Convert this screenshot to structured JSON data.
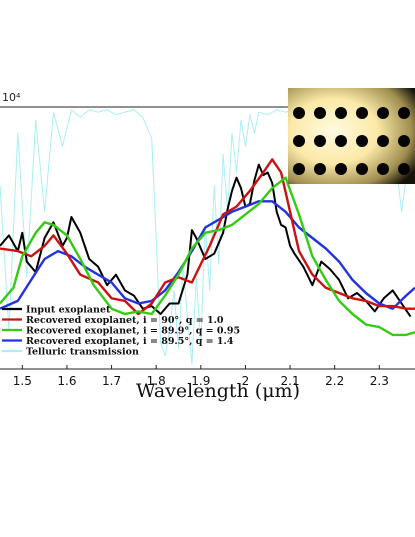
{
  "chart_data": {
    "type": "line",
    "xlabel": "Wavelength (μm)",
    "y_exponent_label": "x 10⁴",
    "xlim": [
      1.45,
      2.38
    ],
    "ylim": [
      0,
      1
    ],
    "x_ticks": [
      "1.5",
      "1.6",
      "1.7",
      "1.8",
      "1.9",
      "2",
      "2.1",
      "2.2",
      "2.3"
    ],
    "grid": false,
    "legend_position": "lower-left",
    "series": [
      {
        "name": "Input exoplanet",
        "color": "#000000",
        "x": [
          1.45,
          1.47,
          1.49,
          1.5,
          1.51,
          1.53,
          1.55,
          1.57,
          1.59,
          1.6,
          1.61,
          1.63,
          1.65,
          1.67,
          1.69,
          1.71,
          1.73,
          1.75,
          1.77,
          1.79,
          1.81,
          1.83,
          1.85,
          1.87,
          1.88,
          1.89,
          1.9,
          1.91,
          1.93,
          1.95,
          1.96,
          1.97,
          1.98,
          1.99,
          2.0,
          2.01,
          2.02,
          2.03,
          2.04,
          2.05,
          2.06,
          2.07,
          2.08,
          2.09,
          2.1,
          2.11,
          2.13,
          2.15,
          2.17,
          2.19,
          2.21,
          2.23,
          2.25,
          2.27,
          2.29,
          2.31,
          2.33,
          2.35,
          2.37
        ],
        "y": [
          0.47,
          0.51,
          0.45,
          0.52,
          0.41,
          0.37,
          0.5,
          0.56,
          0.47,
          0.5,
          0.58,
          0.52,
          0.42,
          0.39,
          0.32,
          0.36,
          0.3,
          0.28,
          0.23,
          0.24,
          0.21,
          0.25,
          0.25,
          0.36,
          0.53,
          0.5,
          0.46,
          0.42,
          0.44,
          0.52,
          0.61,
          0.68,
          0.73,
          0.69,
          0.62,
          0.63,
          0.72,
          0.78,
          0.74,
          0.75,
          0.71,
          0.6,
          0.55,
          0.54,
          0.47,
          0.44,
          0.39,
          0.32,
          0.41,
          0.38,
          0.34,
          0.27,
          0.29,
          0.26,
          0.22,
          0.27,
          0.3,
          0.25,
          0.2
        ]
      },
      {
        "name": "Recovered exoplanet, i = 90°, q = 1.0",
        "color": "#cc1111",
        "x": [
          1.45,
          1.49,
          1.52,
          1.55,
          1.57,
          1.6,
          1.63,
          1.67,
          1.7,
          1.73,
          1.76,
          1.79,
          1.82,
          1.85,
          1.88,
          1.92,
          1.95,
          1.98,
          2.01,
          2.04,
          2.06,
          2.08,
          2.1,
          2.12,
          2.15,
          2.18,
          2.21,
          2.24,
          2.27,
          2.3,
          2.33,
          2.36,
          2.38
        ],
        "y": [
          0.46,
          0.45,
          0.43,
          0.47,
          0.51,
          0.44,
          0.36,
          0.33,
          0.27,
          0.26,
          0.21,
          0.25,
          0.33,
          0.35,
          0.33,
          0.47,
          0.59,
          0.62,
          0.68,
          0.75,
          0.8,
          0.75,
          0.6,
          0.45,
          0.36,
          0.31,
          0.29,
          0.27,
          0.26,
          0.24,
          0.24,
          0.23,
          0.23
        ]
      },
      {
        "name": "Recovered exoplanet, i = 89.9°, q = 0.95",
        "color": "#33cc11",
        "x": [
          1.45,
          1.48,
          1.5,
          1.53,
          1.55,
          1.57,
          1.6,
          1.63,
          1.66,
          1.7,
          1.73,
          1.76,
          1.79,
          1.82,
          1.85,
          1.88,
          1.91,
          1.94,
          1.97,
          2.0,
          2.03,
          2.06,
          2.09,
          2.12,
          2.15,
          2.18,
          2.21,
          2.24,
          2.27,
          2.3,
          2.33,
          2.36,
          2.38
        ],
        "y": [
          0.25,
          0.31,
          0.43,
          0.52,
          0.56,
          0.55,
          0.51,
          0.42,
          0.32,
          0.23,
          0.21,
          0.22,
          0.21,
          0.28,
          0.36,
          0.46,
          0.52,
          0.53,
          0.55,
          0.59,
          0.63,
          0.69,
          0.73,
          0.59,
          0.43,
          0.34,
          0.26,
          0.21,
          0.17,
          0.16,
          0.13,
          0.13,
          0.14
        ]
      },
      {
        "name": "Recovered exoplanet, i = 89.5°, q = 1.4",
        "color": "#2233dd",
        "x": [
          1.45,
          1.49,
          1.52,
          1.55,
          1.58,
          1.61,
          1.64,
          1.67,
          1.7,
          1.73,
          1.76,
          1.79,
          1.82,
          1.85,
          1.88,
          1.91,
          1.94,
          1.97,
          2.0,
          2.03,
          2.06,
          2.09,
          2.12,
          2.15,
          2.18,
          2.21,
          2.24,
          2.27,
          2.3,
          2.33,
          2.36,
          2.38
        ],
        "y": [
          0.23,
          0.26,
          0.34,
          0.42,
          0.45,
          0.43,
          0.39,
          0.36,
          0.33,
          0.27,
          0.25,
          0.26,
          0.3,
          0.37,
          0.45,
          0.54,
          0.57,
          0.6,
          0.62,
          0.64,
          0.64,
          0.6,
          0.54,
          0.5,
          0.46,
          0.41,
          0.34,
          0.29,
          0.25,
          0.23,
          0.28,
          0.31
        ]
      },
      {
        "name": "Telluric transmission",
        "color": "#a8f0f4",
        "x": [
          1.45,
          1.47,
          1.49,
          1.51,
          1.53,
          1.55,
          1.57,
          1.59,
          1.61,
          1.63,
          1.65,
          1.67,
          1.69,
          1.71,
          1.73,
          1.75,
          1.77,
          1.79,
          1.8,
          1.81,
          1.82,
          1.83,
          1.84,
          1.85,
          1.86,
          1.87,
          1.88,
          1.89,
          1.9,
          1.91,
          1.92,
          1.93,
          1.94,
          1.95,
          1.96,
          1.97,
          1.98,
          1.99,
          2.0,
          2.01,
          2.02,
          2.03,
          2.05,
          2.07,
          2.09,
          2.11,
          2.13,
          2.15,
          2.17,
          2.19,
          2.21,
          2.23,
          2.25,
          2.27,
          2.29,
          2.31,
          2.33,
          2.35,
          2.37
        ],
        "y": [
          0.7,
          0.15,
          0.9,
          0.35,
          0.95,
          0.6,
          0.98,
          0.85,
          0.99,
          0.96,
          0.99,
          0.98,
          0.99,
          0.97,
          0.98,
          0.99,
          0.96,
          0.88,
          0.5,
          0.1,
          0.05,
          0.15,
          0.3,
          0.08,
          0.4,
          0.2,
          0.02,
          0.35,
          0.1,
          0.55,
          0.3,
          0.7,
          0.4,
          0.82,
          0.6,
          0.9,
          0.75,
          0.95,
          0.85,
          0.97,
          0.9,
          0.98,
          0.97,
          0.99,
          0.98,
          0.99,
          0.97,
          0.98,
          0.96,
          0.99,
          0.95,
          0.92,
          0.97,
          0.85,
          0.93,
          0.8,
          0.9,
          0.6,
          0.85
        ]
      }
    ]
  },
  "inset": {
    "description_icon": "inset-image-icon",
    "rows": 3,
    "cols": 6
  }
}
